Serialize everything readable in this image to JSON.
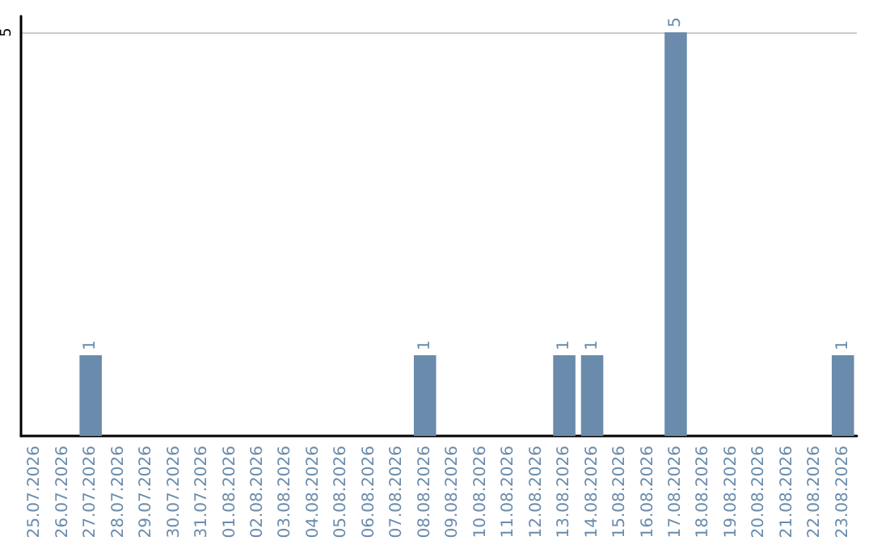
{
  "chart_data": {
    "type": "bar",
    "categories": [
      "25.07.2026",
      "26.07.2026",
      "27.07.2026",
      "28.07.2026",
      "29.07.2026",
      "30.07.2026",
      "31.07.2026",
      "01.08.2026",
      "02.08.2026",
      "03.08.2026",
      "04.08.2026",
      "05.08.2026",
      "06.08.2026",
      "07.08.2026",
      "08.08.2026",
      "09.08.2026",
      "10.08.2026",
      "11.08.2026",
      "12.08.2026",
      "13.08.2026",
      "14.08.2026",
      "15.08.2026",
      "16.08.2026",
      "17.08.2026",
      "18.08.2026",
      "19.08.2026",
      "20.08.2026",
      "21.08.2026",
      "22.08.2026",
      "23.08.2026"
    ],
    "values": [
      0,
      0,
      1,
      0,
      0,
      0,
      0,
      0,
      0,
      0,
      0,
      0,
      0,
      0,
      1,
      0,
      0,
      0,
      0,
      1,
      1,
      0,
      0,
      5,
      0,
      0,
      0,
      0,
      0,
      1
    ],
    "value_labels": [
      null,
      null,
      "1",
      null,
      null,
      null,
      null,
      null,
      null,
      null,
      null,
      null,
      null,
      null,
      "1",
      null,
      null,
      null,
      null,
      "1",
      "1",
      null,
      null,
      "5",
      null,
      null,
      null,
      null,
      null,
      "1"
    ],
    "color": "#6a8bab",
    "ylim": [
      0,
      5.2
    ],
    "yticks": [
      5
    ],
    "grid": "y"
  }
}
